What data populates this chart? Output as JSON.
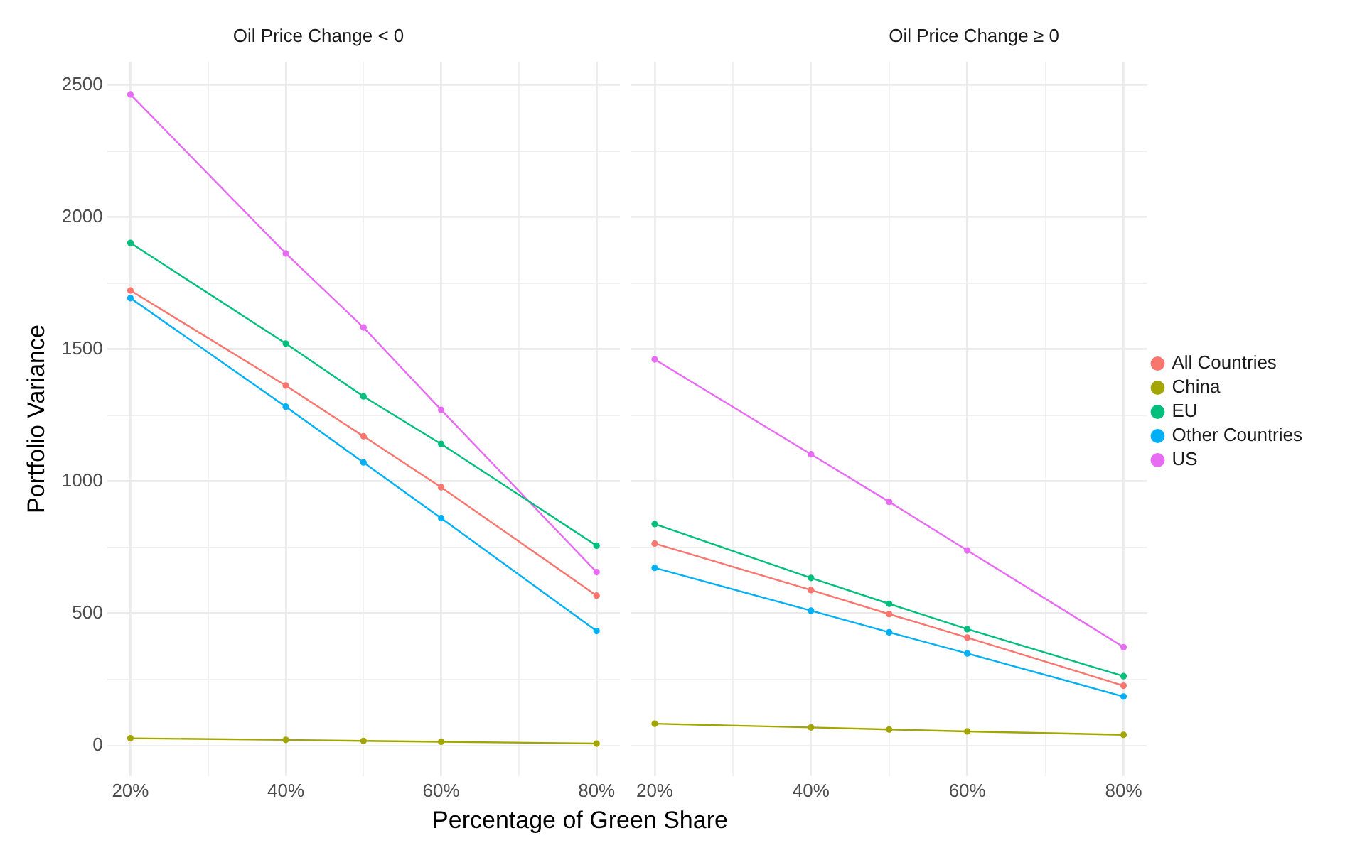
{
  "chart_data": [
    {
      "type": "line",
      "title": "Oil Price Change < 0",
      "xlabel": "Percentage of Green Share",
      "ylabel": "Portfolio Variance",
      "x": [
        20,
        40,
        50,
        60,
        80
      ],
      "series": [
        {
          "color": "#f8766d",
          "values": [
            1722,
            1362,
            1170,
            977,
            567
          ]
        },
        {
          "color": "#a3a500",
          "values": [
            27,
            21,
            17,
            14,
            7
          ]
        },
        {
          "color": "#00bf7d",
          "values": [
            1902,
            1521,
            1321,
            1141,
            756
          ]
        },
        {
          "color": "#00b0f6",
          "values": [
            1693,
            1282,
            1071,
            860,
            433
          ]
        },
        {
          "color": "#e76bf3",
          "values": [
            2464,
            1862,
            1582,
            1270,
            656
          ]
        }
      ],
      "xlim": [
        17,
        83
      ],
      "xticks": [
        {
          "value": 20,
          "label": "20%"
        },
        {
          "value": 30,
          "label": null
        },
        {
          "value": 40,
          "label": "40%"
        },
        {
          "value": 50,
          "label": null
        },
        {
          "value": 60,
          "label": "60%"
        },
        {
          "value": 70,
          "label": null
        },
        {
          "value": 80,
          "label": "80%"
        }
      ],
      "ylim": [
        -116,
        2587
      ],
      "yticks": [
        0,
        {
          "value": 250,
          "label": null
        },
        500,
        {
          "value": 750,
          "label": null
        },
        1000,
        {
          "value": 1250,
          "label": null
        },
        1500,
        {
          "value": 1750,
          "label": null
        },
        2000,
        {
          "value": 2250,
          "label": null
        },
        2500
      ],
      "grid": true,
      "legend": false,
      "marker": "circle",
      "line_style": "solid"
    },
    {
      "type": "line",
      "title": "Oil Price Change ≥ 0",
      "x": [
        20,
        40,
        50,
        60,
        80
      ],
      "series": [
        {
          "name": "All Countries",
          "color": "#f8766d",
          "values": [
            764,
            588,
            497,
            408,
            226
          ]
        },
        {
          "name": "China",
          "color": "#a3a500",
          "values": [
            82,
            68,
            60,
            53,
            40
          ]
        },
        {
          "name": "EU",
          "color": "#00bf7d",
          "values": [
            838,
            634,
            536,
            440,
            262
          ]
        },
        {
          "name": "Other Countries",
          "color": "#00b0f6",
          "values": [
            672,
            510,
            428,
            348,
            185
          ]
        },
        {
          "name": "US",
          "color": "#e76bf3",
          "values": [
            1461,
            1102,
            922,
            738,
            372
          ]
        }
      ],
      "xlim": [
        17,
        83
      ],
      "xticks": [
        {
          "value": 20,
          "label": "20%"
        },
        {
          "value": 30,
          "label": null
        },
        {
          "value": 40,
          "label": "40%"
        },
        {
          "value": 50,
          "label": null
        },
        {
          "value": 60,
          "label": "60%"
        },
        {
          "value": 70,
          "label": null
        },
        {
          "value": 80,
          "label": "80%"
        }
      ],
      "ylim": [
        -116,
        2587
      ],
      "yticks": [
        0,
        {
          "value": 250,
          "label": null
        },
        500,
        {
          "value": 750,
          "label": null
        },
        1000,
        {
          "value": 1250,
          "label": null
        },
        1500,
        {
          "value": 1750,
          "label": null
        },
        2000,
        {
          "value": 2250,
          "label": null
        },
        2500
      ],
      "grid": true,
      "legend": "right",
      "marker": "circle",
      "line_style": "solid",
      "tick_labels": "x"
    }
  ]
}
